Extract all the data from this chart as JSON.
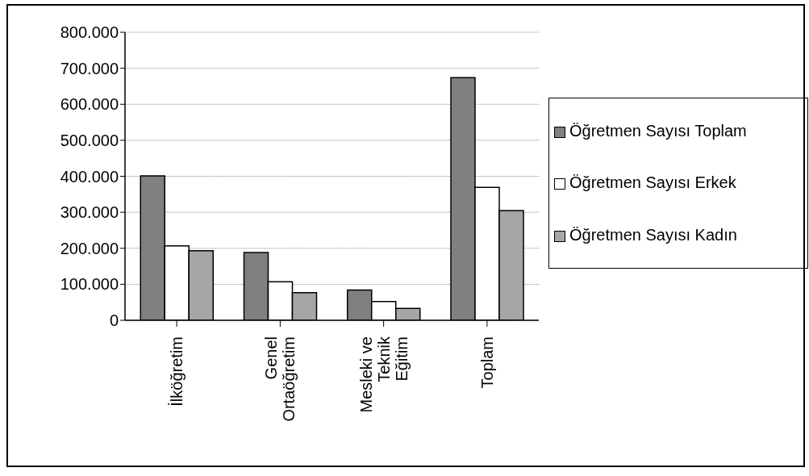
{
  "chart_data": {
    "type": "bar",
    "categories": [
      "İlköğretim",
      "Genel Ortaöğretim",
      "Mesleki ve Teknik Eğitim",
      "Toplam"
    ],
    "series": [
      {
        "name": "Öğretmen Sayısı Toplam",
        "color": "#808080",
        "values": [
          401000,
          188000,
          84000,
          674000
        ]
      },
      {
        "name": "Öğretmen Sayısı Erkek",
        "color": "#ffffff",
        "values": [
          207000,
          107000,
          52000,
          369000
        ]
      },
      {
        "name": "Öğretmen Sayısı Kadın",
        "color": "#a6a6a6",
        "values": [
          193000,
          77000,
          33000,
          305000
        ]
      }
    ],
    "ylim": [
      0,
      800000
    ],
    "yticks": [
      0,
      {
        "value": 100000,
        "label": "100.000"
      },
      {
        "value": 200000,
        "label": "200.000"
      },
      {
        "value": 300000,
        "label": "300.000"
      },
      {
        "value": 400000,
        "label": "400.000"
      },
      {
        "value": 500000,
        "label": "500.000"
      },
      {
        "value": 600000,
        "label": "600.000"
      },
      {
        "value": 700000,
        "label": "700.000"
      },
      {
        "value": 800000,
        "label": "800.000"
      }
    ],
    "grid": "y",
    "legend": "right"
  }
}
